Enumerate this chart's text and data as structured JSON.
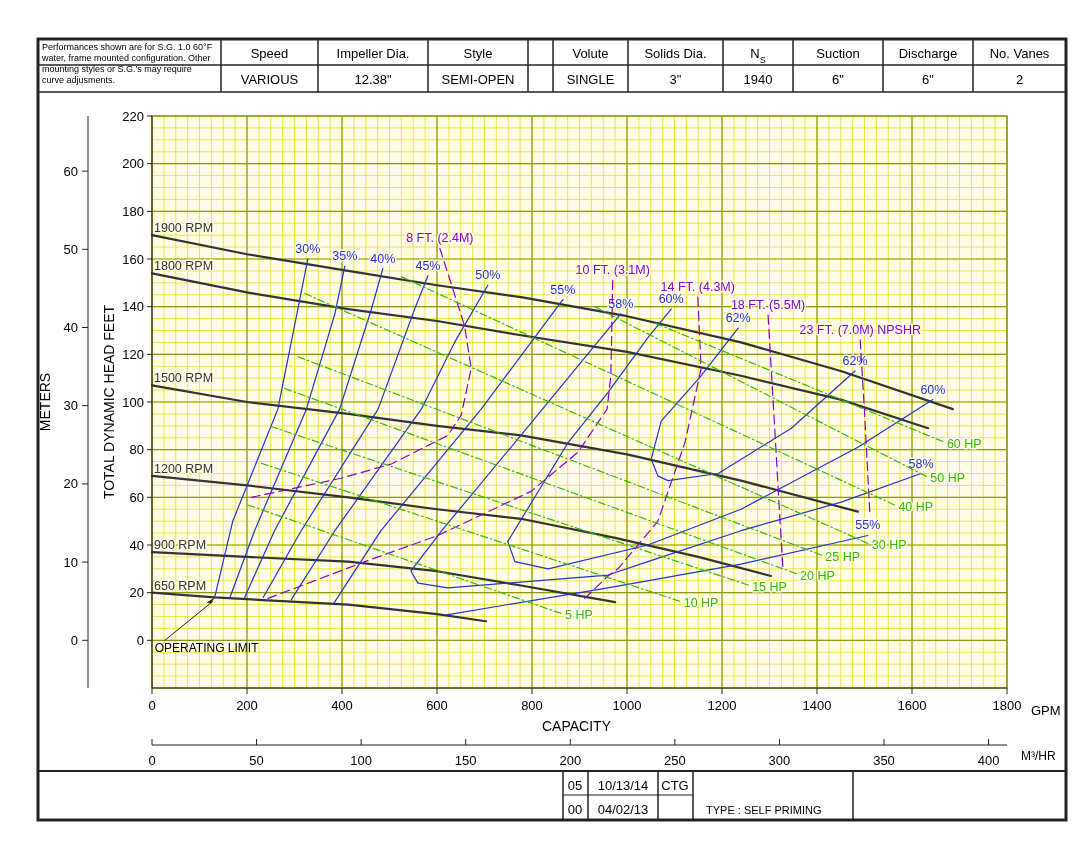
{
  "chart_data": {
    "type": "line",
    "xlabel": "CAPACITY",
    "ylabel": "TOTAL DYNAMIC HEAD FEET",
    "y2label": "METERS",
    "x2label": "M³/HR",
    "xlim": [
      0,
      1800
    ],
    "xticks": [
      0,
      200,
      400,
      600,
      800,
      1000,
      1200,
      1400,
      1600,
      1800
    ],
    "ylim": [
      -20,
      220
    ],
    "yticks": [
      0,
      20,
      40,
      60,
      80,
      100,
      120,
      140,
      160,
      180,
      200,
      220
    ],
    "y2lim": [
      -6.1,
      67.05
    ],
    "y2ticks": [
      0,
      10,
      20,
      30,
      40,
      50,
      60
    ],
    "x2lim": [
      0,
      408.8
    ],
    "x2ticks": [
      0,
      50,
      100,
      150,
      200,
      250,
      300,
      350,
      400
    ],
    "grid": true,
    "annotations": [
      "Performances shown are for S.G. 1.0 60°F water, frame mounted configuration. Other mounting styles or S.G.'s may require curve adjusments.",
      "Speed",
      "Impeller Dia.",
      "Style",
      "Volute",
      "Solids Dia.",
      "N$_{S}$",
      "Suction",
      "Discharge",
      "No. Vanes",
      "VARIOUS",
      "12.38\"",
      "SEMI-OPEN",
      "SINGLE",
      "3\"",
      "1940",
      "6\"",
      "6\"",
      "2",
      "05",
      "10/13/14",
      "CTG",
      "00",
      "04/02/13",
      "TYPE : SELF PRIMING",
      "GPM",
      {
        "text": "OPERATING LIMIT",
        "x": 132,
        "y": 18
      }
    ],
    "series": [
      {
        "name": "1900 RPM",
        "color": "#333333",
        "line_style": "solid",
        "x": [
          0,
          200,
          413,
          600,
          777,
          1000,
          1240,
          1450,
          1686
        ],
        "values": [
          170,
          162,
          155,
          149,
          144,
          136,
          125,
          113,
          97
        ]
      },
      {
        "name": "1800 RPM",
        "color": "#333333",
        "line_style": "solid",
        "x": [
          0,
          200,
          413,
          600,
          777,
          1000,
          1240,
          1450,
          1634
        ],
        "values": [
          154,
          146,
          139,
          134,
          128,
          121,
          111,
          101,
          89
        ]
      },
      {
        "name": "1500 RPM",
        "color": "#333333",
        "line_style": "solid",
        "x": [
          0,
          200,
          413,
          600,
          777,
          1000,
          1240,
          1486
        ],
        "values": [
          107,
          100,
          95,
          90,
          86,
          78,
          67,
          54
        ]
      },
      {
        "name": "1200 RPM",
        "color": "#333333",
        "line_style": "solid",
        "x": [
          0,
          200,
          413,
          600,
          777,
          975,
          1150,
          1303
        ],
        "values": [
          69,
          65,
          60,
          55,
          51,
          43,
          35,
          27
        ]
      },
      {
        "name": "900 RPM",
        "color": "#333333",
        "line_style": "solid",
        "x": [
          0,
          200,
          413,
          600,
          777,
          975
        ],
        "values": [
          37,
          35,
          33,
          29,
          23,
          16
        ]
      },
      {
        "name": "650 RPM",
        "color": "#333333",
        "line_style": "solid",
        "x": [
          0,
          132,
          413,
          600,
          703
        ],
        "values": [
          20,
          18,
          15,
          11,
          8
        ]
      },
      {
        "name": "30%",
        "color": "#2233cc",
        "line_style": "solid",
        "x": [
          328,
          307,
          265,
          170,
          132
        ],
        "values": [
          160,
          139,
          97,
          50,
          18
        ]
      },
      {
        "name": "35%",
        "color": "#2233cc",
        "line_style": "solid",
        "x": [
          406,
          385,
          325,
          216,
          164
        ],
        "values": [
          157,
          137,
          97,
          46,
          18
        ]
      },
      {
        "name": "40%",
        "color": "#2233cc",
        "line_style": "solid",
        "x": [
          486,
          462,
          395,
          258,
          195
        ],
        "values": [
          156,
          139,
          97,
          46,
          18
        ]
      },
      {
        "name": "45%",
        "color": "#2233cc",
        "line_style": "solid",
        "x": [
          581,
          553,
          476,
          314,
          234
        ],
        "values": [
          153,
          139,
          97,
          46,
          18
        ]
      },
      {
        "name": "50%",
        "color": "#2233cc",
        "line_style": "solid",
        "x": [
          707,
          637,
          567,
          385,
          293
        ],
        "values": [
          149,
          125,
          97,
          46,
          17
        ]
      },
      {
        "name": "55%",
        "color": "#2233cc",
        "line_style": "solid",
        "x": [
          865,
          693,
          482,
          381,
          null,
          617,
          960,
          1240,
          1507
        ],
        "values": [
          143,
          97,
          46,
          15,
          null,
          10.6,
          22,
          32,
          44
        ]
      },
      {
        "name": "58%",
        "color": "#2233cc",
        "line_style": "solid",
        "x": [
          987,
          764,
          610,
          545,
          560,
          623,
          960,
          1044,
          1240,
          1451,
          1619
        ],
        "values": [
          137,
          83,
          46,
          29,
          24,
          22,
          27.4,
          33,
          46,
          58,
          70
        ]
      },
      {
        "name": "60%",
        "color": "#2233cc",
        "line_style": "solid",
        "x": [
          1093,
          1044,
          960,
          876,
          749,
          764,
          834,
          1044,
          1240,
          1486,
          1644
        ],
        "values": [
          139,
          127,
          104,
          83,
          41.5,
          33,
          30,
          40,
          55,
          81,
          101
        ]
      },
      {
        "name": "62%",
        "color": "#2233cc",
        "line_style": "solid",
        "x": [
          1234,
          1156,
          1072,
          1051,
          1065,
          1086,
          1192,
          1346,
          1480
        ],
        "values": [
          131,
          111,
          92,
          76,
          69,
          67,
          70,
          89,
          113
        ]
      },
      {
        "name": "8 FT. (2.4M)",
        "color": "#8800cc",
        "line_style": "dashed",
        "x": [
          606,
          658,
          672,
          651,
          623,
          504,
          398,
          209
        ],
        "values": [
          164.5,
          132,
          114,
          94.5,
          86,
          74,
          68,
          60
        ]
      },
      {
        "name": "10 FT. (3.1M)",
        "color": "#8800cc",
        "line_style": "dashed",
        "x": [
          970,
          966,
          958,
          897,
          798,
          602,
          448,
          244
        ],
        "values": [
          151,
          111,
          97,
          79,
          62.5,
          44,
          33,
          17.6
        ]
      },
      {
        "name": "14 FT. (4.3M)",
        "color": "#8800cc",
        "line_style": "dashed",
        "x": [
          1149,
          1156,
          1122,
          1065,
          981,
          960,
          911
        ],
        "values": [
          144,
          114,
          83,
          50,
          30,
          27,
          17.6
        ]
      },
      {
        "name": "18 FT. (5.5M)",
        "color": "#8800cc",
        "line_style": "dashed",
        "x": [
          1297,
          1311,
          1321,
          1328
        ],
        "values": [
          136.5,
          89,
          54,
          31
        ]
      },
      {
        "name": "23 FT. (7.0M) NPSHR",
        "color": "#8800cc",
        "line_style": "dashed",
        "x": [
          1491,
          1500,
          1511
        ],
        "values": [
          126,
          96,
          54
        ]
      },
      {
        "name": "5 HP",
        "color": "#33bb00",
        "line_style": "dotted",
        "x": [
          861,
          202
        ],
        "values": [
          11.3,
          56.8
        ]
      },
      {
        "name": "10 HP",
        "color": "#33bb00",
        "line_style": "dotted",
        "x": [
          1111,
          230
        ],
        "values": [
          16.4,
          74.3
        ]
      },
      {
        "name": "15 HP",
        "color": "#33bb00",
        "line_style": "dotted",
        "x": [
          1255,
          251
        ],
        "values": [
          23.2,
          89.7
        ]
      },
      {
        "name": "20 HP",
        "color": "#33bb00",
        "line_style": "dotted",
        "x": [
          1356,
          279
        ],
        "values": [
          28,
          105.7
        ]
      },
      {
        "name": "25 HP",
        "color": "#33bb00",
        "line_style": "dotted",
        "x": [
          1409,
          307
        ],
        "values": [
          35.8,
          119
        ]
      },
      {
        "name": "30 HP",
        "color": "#33bb00",
        "line_style": "dotted",
        "x": [
          1507,
          321
        ],
        "values": [
          40.7,
          145.6
        ]
      },
      {
        "name": "40 HP",
        "color": "#33bb00",
        "line_style": "dotted",
        "x": [
          1563,
          525
        ],
        "values": [
          56.8,
          152.6
        ]
      },
      {
        "name": "50 HP",
        "color": "#33bb00",
        "line_style": "dotted",
        "x": [
          1630,
          932
        ],
        "values": [
          68.8,
          140
        ]
      },
      {
        "name": "60 HP",
        "color": "#33bb00",
        "line_style": "dotted",
        "x": [
          1665,
          1060
        ],
        "values": [
          83.4,
          133
        ]
      }
    ]
  }
}
